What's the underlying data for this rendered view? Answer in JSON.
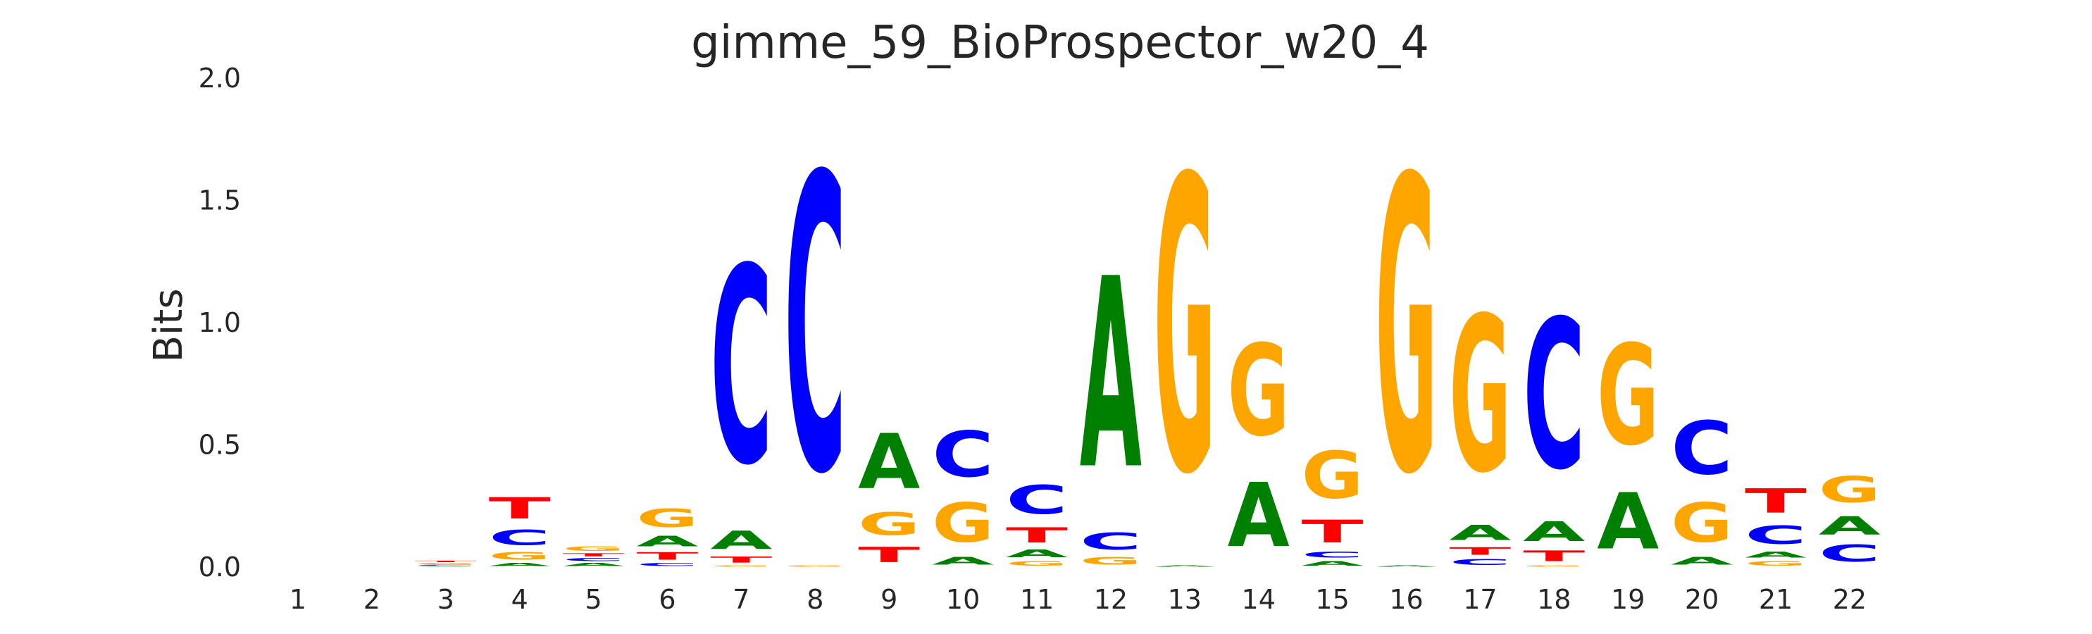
{
  "chart_data": {
    "type": "sequence-logo",
    "title": "gimme_59_BioProspector_w20_4",
    "xlabel": "",
    "ylabel": "Bits",
    "ylim": [
      0,
      2.0
    ],
    "yticks": [
      "0.0",
      "0.5",
      "1.0",
      "1.5",
      "2.0"
    ],
    "grid": false,
    "colors": {
      "A": "#008000",
      "C": "#0000ff",
      "G": "#ffa500",
      "T": "#ff0000"
    },
    "positions": [
      {
        "pos": "1",
        "stack": []
      },
      {
        "pos": "2",
        "stack": []
      },
      {
        "pos": "3",
        "stack": [
          {
            "base": "A",
            "h": 0.004
          },
          {
            "base": "C",
            "h": 0.006
          },
          {
            "base": "G",
            "h": 0.008
          },
          {
            "base": "T",
            "h": 0.01
          }
        ]
      },
      {
        "pos": "4",
        "stack": [
          {
            "base": "A",
            "h": 0.02
          },
          {
            "base": "G",
            "h": 0.05
          },
          {
            "base": "C",
            "h": 0.1
          },
          {
            "base": "T",
            "h": 0.14
          }
        ]
      },
      {
        "pos": "5",
        "stack": [
          {
            "base": "A",
            "h": 0.02
          },
          {
            "base": "C",
            "h": 0.02
          },
          {
            "base": "T",
            "h": 0.02
          },
          {
            "base": "G",
            "h": 0.03
          }
        ]
      },
      {
        "pos": "6",
        "stack": [
          {
            "base": "C",
            "h": 0.02
          },
          {
            "base": "T",
            "h": 0.05
          },
          {
            "base": "A",
            "h": 0.07
          },
          {
            "base": "G",
            "h": 0.12
          }
        ]
      },
      {
        "pos": "7",
        "stack": [
          {
            "base": "G",
            "h": 0.01
          },
          {
            "base": "T",
            "h": 0.04
          },
          {
            "base": "A",
            "h": 0.12
          },
          {
            "base": "C",
            "h": 1.29
          }
        ]
      },
      {
        "pos": "8",
        "stack": [
          {
            "base": "G",
            "h": 0.01
          },
          {
            "base": "C",
            "h": 1.94
          }
        ]
      },
      {
        "pos": "9",
        "stack": [
          {
            "base": "T",
            "h": 0.1
          },
          {
            "base": "G",
            "h": 0.15
          },
          {
            "base": "A",
            "h": 0.36
          }
        ]
      },
      {
        "pos": "10",
        "stack": [
          {
            "base": "A",
            "h": 0.05
          },
          {
            "base": "G",
            "h": 0.26
          },
          {
            "base": "C",
            "h": 0.3
          }
        ]
      },
      {
        "pos": "11",
        "stack": [
          {
            "base": "G",
            "h": 0.03
          },
          {
            "base": "A",
            "h": 0.05
          },
          {
            "base": "T",
            "h": 0.1
          },
          {
            "base": "C",
            "h": 0.19
          }
        ]
      },
      {
        "pos": "12",
        "stack": [
          {
            "base": "G",
            "h": 0.05
          },
          {
            "base": "C",
            "h": 0.11
          },
          {
            "base": "A",
            "h": 1.25
          }
        ]
      },
      {
        "pos": "13",
        "stack": [
          {
            "base": "A",
            "h": 0.01
          },
          {
            "base": "G",
            "h": 1.93
          }
        ]
      },
      {
        "pos": "14",
        "stack": [
          {
            "base": "A",
            "h": 0.42
          },
          {
            "base": "G",
            "h": 0.6
          }
        ]
      },
      {
        "pos": "15",
        "stack": [
          {
            "base": "A",
            "h": 0.03
          },
          {
            "base": "C",
            "h": 0.04
          },
          {
            "base": "T",
            "h": 0.15
          },
          {
            "base": "G",
            "h": 0.31
          }
        ]
      },
      {
        "pos": "16",
        "stack": [
          {
            "base": "A",
            "h": 0.01
          },
          {
            "base": "G",
            "h": 1.93
          }
        ]
      },
      {
        "pos": "17",
        "stack": [
          {
            "base": "C",
            "h": 0.04
          },
          {
            "base": "T",
            "h": 0.05
          },
          {
            "base": "A",
            "h": 0.1
          },
          {
            "base": "G",
            "h": 1.02
          }
        ]
      },
      {
        "pos": "18",
        "stack": [
          {
            "base": "G",
            "h": 0.01
          },
          {
            "base": "T",
            "h": 0.07
          },
          {
            "base": "A",
            "h": 0.13
          },
          {
            "base": "C",
            "h": 0.98
          }
        ]
      },
      {
        "pos": "19",
        "stack": [
          {
            "base": "A",
            "h": 0.37
          },
          {
            "base": "G",
            "h": 0.66
          }
        ]
      },
      {
        "pos": "20",
        "stack": [
          {
            "base": "A",
            "h": 0.05
          },
          {
            "base": "G",
            "h": 0.26
          },
          {
            "base": "C",
            "h": 0.35
          }
        ]
      },
      {
        "pos": "21",
        "stack": [
          {
            "base": "G",
            "h": 0.03
          },
          {
            "base": "A",
            "h": 0.04
          },
          {
            "base": "C",
            "h": 0.12
          },
          {
            "base": "T",
            "h": 0.16
          }
        ]
      },
      {
        "pos": "22",
        "stack": [
          {
            "base": "C",
            "h": 0.11
          },
          {
            "base": "A",
            "h": 0.12
          },
          {
            "base": "G",
            "h": 0.17
          }
        ]
      }
    ]
  }
}
